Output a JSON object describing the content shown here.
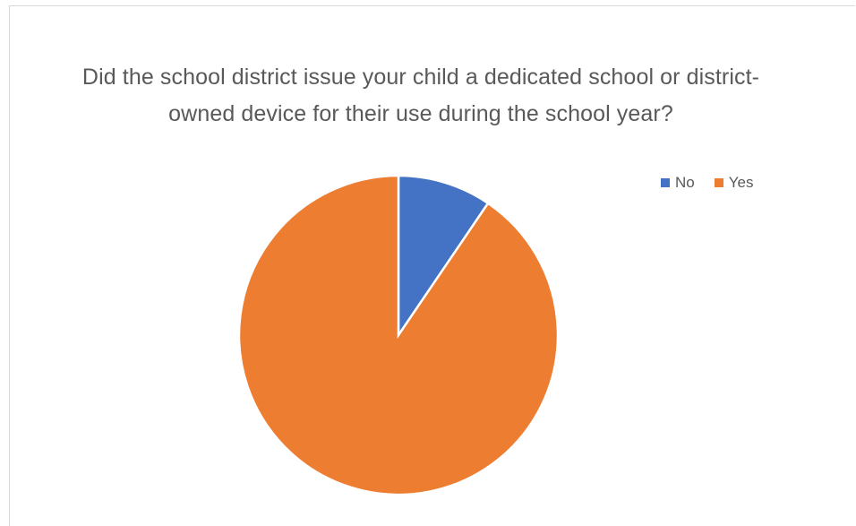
{
  "chart_data": {
    "type": "pie",
    "title": "Did the school district issue your child a dedicated school or district-owned device for their use during the school year?",
    "categories": [
      "No",
      "Yes"
    ],
    "values": [
      9.5,
      90.5
    ],
    "colors": [
      "#4472C4",
      "#ED7D31"
    ],
    "legend_position": "top-right",
    "start_angle": "12 o'clock",
    "direction": "clockwise"
  }
}
